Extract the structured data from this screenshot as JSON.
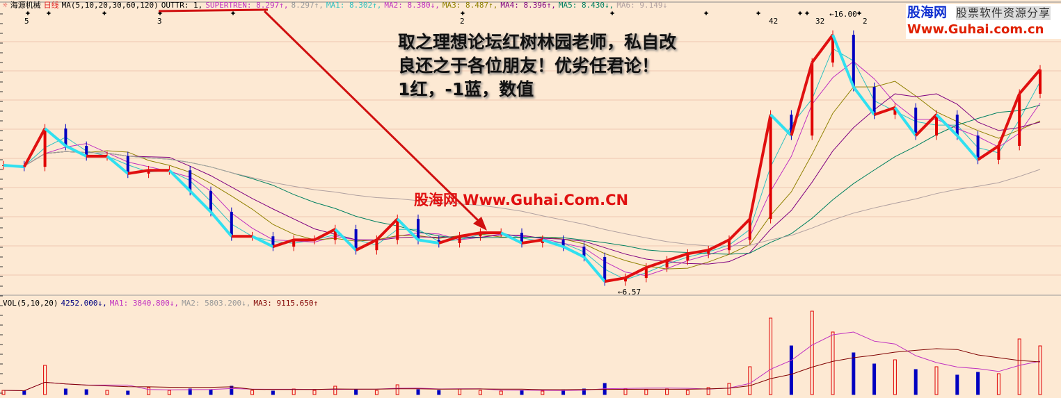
{
  "header": {
    "stock_name": "海源机械",
    "period": "日线",
    "ma_params": "MA(5,10,20,30,60,120)",
    "outtr": "OUTTR: 1,",
    "supertrend": "SUPERTREN: 8.297↑,",
    "st2": "8.297↑,",
    "ma1": "MA1: 8.302↑,",
    "ma2": "MA2: 8.380↓,",
    "ma3": "MA3: 8.487↑,",
    "ma4": "MA4: 8.396↑,",
    "ma5": "MA5: 8.430↓,",
    "ma6": "MA6: 9.149↓"
  },
  "volume_header": {
    "params": "VOL(5,10,20)",
    "vol": "4252.000↓,",
    "ma1": "MA1: 3840.800↓,",
    "ma2": "MA2: 5803.200↓,",
    "ma3": "MA3: 9115.650↑"
  },
  "markers": {
    "m1": "5",
    "m2": "3",
    "m3": "2",
    "m4": "42",
    "m5": "32",
    "m6": "2",
    "high": "16.00",
    "low": "6.57"
  },
  "annotation": {
    "text": "取之理想论坛红树林园老师，私自改\n良还之于各位朋友！优劣任君论！\n1红，-1蓝，数值",
    "watermark": "股海网 Www.Guhai.Com.CN"
  },
  "logo": {
    "name": "股海网",
    "tagline": "股票软件资源分享",
    "url": "Www.Guhai.com.cn"
  },
  "colors": {
    "background": "#fde9d3",
    "up": "#e00000",
    "down": "#0000c0",
    "supertrend_up": "#e01010",
    "supertrend_down": "#30e0f0",
    "ma1": "#30c0c0",
    "ma2": "#c030c0",
    "ma3": "#908000",
    "ma4": "#800080",
    "ma5": "#008060",
    "ma6": "#b0a0a0"
  },
  "chart_data": {
    "type": "line",
    "title": "",
    "ylim": [
      6.57,
      16.0
    ],
    "close": [
      10.86,
      10.81,
      12.11,
      11.52,
      11.17,
      11.17,
      10.58,
      10.69,
      10.69,
      9.99,
      9.28,
      8.45,
      8.45,
      8.1,
      8.33,
      8.33,
      8.69,
      7.98,
      8.33,
      9.04,
      8.33,
      8.22,
      8.45,
      8.57,
      8.57,
      8.22,
      8.33,
      8.1,
      7.75,
      6.92,
      7.04,
      7.39,
      7.63,
      7.86,
      7.98,
      8.33,
      9.04,
      12.58,
      11.87,
      14.35,
      15.29,
      13.52,
      12.58,
      12.82,
      11.87,
      12.58,
      11.87,
      11.05,
      11.52,
      13.29,
      14.11
    ],
    "volume": [
      3000,
      2500,
      21000,
      4000,
      3500,
      3000,
      2500,
      5000,
      3000,
      4000,
      3500,
      6000,
      3000,
      2500,
      4000,
      3000,
      6000,
      3500,
      3000,
      7000,
      3500,
      3000,
      4000,
      3000,
      2500,
      3000,
      2500,
      3500,
      4000,
      8000,
      4000,
      3500,
      4000,
      3000,
      5000,
      8000,
      20000,
      55000,
      35000,
      60000,
      45000,
      30000,
      22000,
      25000,
      18000,
      20000,
      14000,
      16000,
      15000,
      40000,
      35000
    ]
  }
}
